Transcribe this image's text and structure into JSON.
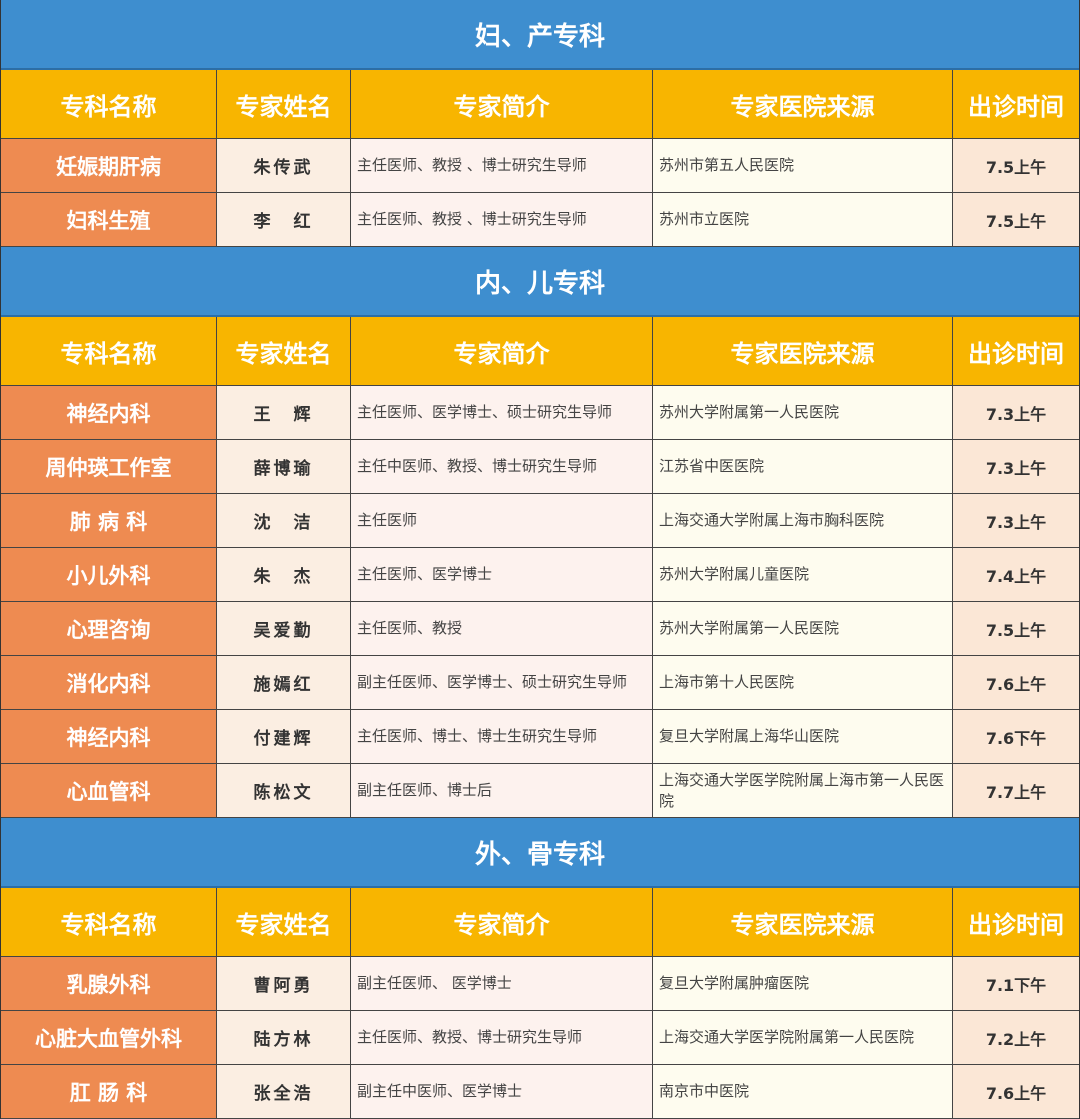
{
  "columns": [
    "专科名称",
    "专家姓名",
    "专家简介",
    "专家医院来源",
    "出诊时间"
  ],
  "colors": {
    "section": "#3e8ecf",
    "header": "#f8b500",
    "specialty": "#ee8b51"
  },
  "sections": [
    {
      "title": "妇、产专科",
      "rows": [
        [
          "妊娠期肝病",
          "朱传武",
          "主任医师、教授 、博士研究生导师",
          "苏州市第五人民医院",
          "7.5上午"
        ],
        [
          "妇科生殖",
          "李　红",
          "主任医师、教授 、博士研究生导师",
          "苏州市立医院",
          "7.5上午"
        ]
      ]
    },
    {
      "title": "内、儿专科",
      "rows": [
        [
          "神经内科",
          "王　辉",
          "主任医师、医学博士、硕士研究生导师",
          "苏州大学附属第一人民医院",
          "7.3上午"
        ],
        [
          "周仲瑛工作室",
          "薛博瑜",
          "主任中医师、教授、博士研究生导师",
          "江苏省中医医院",
          "7.3上午"
        ],
        [
          "肺 病 科",
          "沈　洁",
          "主任医师",
          "上海交通大学附属上海市胸科医院",
          "7.3上午"
        ],
        [
          "小儿外科",
          "朱　杰",
          "主任医师、医学博士",
          "苏州大学附属儿童医院",
          "7.4上午"
        ],
        [
          "心理咨询",
          "吴爱勤",
          "主任医师、教授",
          "苏州大学附属第一人民医院",
          "7.5上午"
        ],
        [
          "消化内科",
          "施嫣红",
          "副主任医师、医学博士、硕士研究生导师",
          "上海市第十人民医院",
          "7.6上午"
        ],
        [
          "神经内科",
          "付建辉",
          "主任医师、博士、博士生研究生导师",
          "复旦大学附属上海华山医院",
          "7.6下午"
        ],
        [
          "心血管科",
          "陈松文",
          "副主任医师、博士后",
          "上海交通大学医学院附属上海市第一人民医院",
          "7.7上午"
        ]
      ]
    },
    {
      "title": "外、骨专科",
      "rows": [
        [
          "乳腺外科",
          "曹阿勇",
          "副主任医师、 医学博士",
          "复旦大学附属肿瘤医院",
          "7.1下午"
        ],
        [
          "心脏大血管外科",
          "陆方林",
          "主任医师、教授、博士研究生导师",
          "上海交通大学医学院附属第一人民医院",
          "7.2上午"
        ],
        [
          "肛 肠 科",
          "张全浩",
          "副主任中医师、医学博士",
          "南京市中医院",
          "7.6上午"
        ]
      ]
    }
  ]
}
